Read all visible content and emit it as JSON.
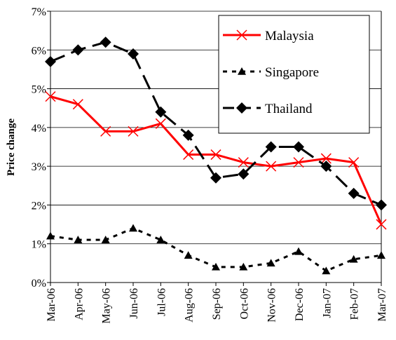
{
  "chart_data": {
    "type": "line",
    "ylabel": "Price change",
    "xlabel": "",
    "ylim": [
      0,
      7
    ],
    "y_ticks": [
      "0%",
      "1%",
      "2%",
      "3%",
      "4%",
      "5%",
      "6%",
      "7%"
    ],
    "grid": "horizontal",
    "legend_position": "top-right",
    "categories": [
      "Mar-06",
      "Apr-06",
      "May-06",
      "Jun-06",
      "Jul-06",
      "Aug-06",
      "Sep-06",
      "Oct-06",
      "Nov-06",
      "Dec-06",
      "Jan-07",
      "Feb-07",
      "Mar-07"
    ],
    "series": [
      {
        "name": "Malaysia",
        "color": "#ff0000",
        "marker": "x",
        "line_style": "solid",
        "values": [
          4.8,
          4.6,
          3.9,
          3.9,
          4.1,
          3.3,
          3.3,
          3.1,
          3.0,
          3.1,
          3.2,
          3.1,
          1.5
        ]
      },
      {
        "name": "Singapore",
        "color": "#000000",
        "marker": "triangle",
        "line_style": "dotted",
        "values": [
          1.2,
          1.1,
          1.1,
          1.4,
          1.1,
          0.7,
          0.4,
          0.4,
          0.5,
          0.8,
          0.3,
          0.6,
          0.7
        ]
      },
      {
        "name": "Thailand",
        "color": "#000000",
        "marker": "diamond",
        "line_style": "dashed",
        "values": [
          5.7,
          6.0,
          6.2,
          5.9,
          4.4,
          3.8,
          2.7,
          2.8,
          3.5,
          3.5,
          3.0,
          2.3,
          2.0
        ]
      }
    ]
  }
}
